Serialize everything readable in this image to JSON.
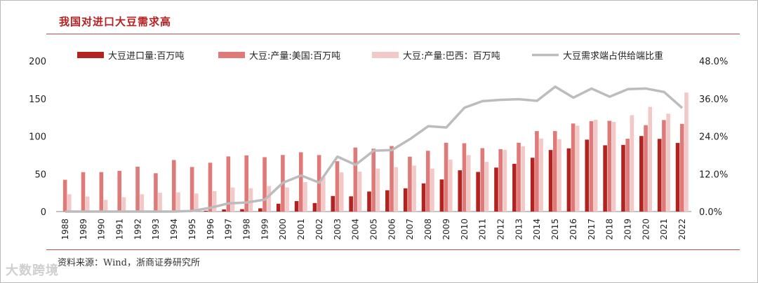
{
  "page": {
    "title": "我国对进口大豆需求高",
    "source": "资料来源：Wind，浙商证券研究所",
    "watermark": "大数跨境"
  },
  "chart_data": {
    "type": "bar",
    "title": "",
    "xlabel": "",
    "ylabel": "",
    "categories": [
      "1988",
      "1989",
      "1990",
      "1991",
      "1992",
      "1993",
      "1994",
      "1995",
      "1996",
      "1997",
      "1998",
      "1999",
      "2000",
      "2001",
      "2002",
      "2003",
      "2004",
      "2005",
      "2006",
      "2007",
      "2008",
      "2009",
      "2010",
      "2011",
      "2012",
      "2013",
      "2014",
      "2015",
      "2016",
      "2017",
      "2018",
      "2019",
      "2020",
      "2021",
      "2022"
    ],
    "ylim": [
      0,
      200
    ],
    "y_ticks": [
      "0",
      "50",
      "100",
      "150",
      "200"
    ],
    "y2lim": [
      0,
      48
    ],
    "y2_ticks": [
      "0.0%",
      "12.0%",
      "24.0%",
      "36.0%",
      "48.0%"
    ],
    "legend_position": "top",
    "grid": false,
    "series": [
      {
        "name": "大豆进口量:百万吨",
        "type": "bar",
        "color": "#b3221f",
        "values": [
          0,
          0,
          0,
          0,
          0,
          0,
          0,
          0.3,
          1.1,
          2.8,
          3.2,
          4.3,
          10.4,
          13.9,
          11.3,
          20.7,
          20.2,
          26.6,
          28.3,
          30.8,
          37.4,
          42.6,
          54.8,
          52.6,
          58.4,
          63.4,
          71.4,
          81.7,
          83.9,
          95.5,
          88.0,
          88.5,
          100.3,
          96.5,
          91.1
        ]
      },
      {
        "name": "大豆:产量:美国:百万吨",
        "type": "bar",
        "color": "#e07a79",
        "values": [
          42.2,
          52.3,
          52.4,
          54.1,
          59.6,
          50.9,
          68.4,
          59.2,
          64.8,
          73.2,
          74.6,
          72.2,
          75.1,
          78.7,
          75.0,
          66.8,
          85.0,
          83.5,
          87.0,
          72.9,
          80.7,
          91.4,
          90.7,
          84.2,
          82.8,
          91.4,
          106.9,
          106.9,
          116.9,
          120.1,
          120.5,
          96.7,
          114.7,
          121.5,
          116.4
        ]
      },
      {
        "name": "大豆:产量:巴西：百万吨",
        "type": "bar",
        "color": "#f3c9c8",
        "values": [
          23.0,
          20.0,
          15.5,
          19.0,
          23.0,
          25.0,
          25.5,
          24.0,
          27.0,
          32.0,
          31.0,
          34.0,
          32.0,
          39.0,
          46.0,
          52.0,
          53.0,
          57.0,
          59.0,
          61.0,
          57.0,
          69.0,
          75.0,
          66.0,
          82.0,
          86.5,
          97.0,
          96.0,
          114.0,
          122.0,
          119.0,
          128.0,
          139.0,
          130.0,
          158.0
        ]
      },
      {
        "name": "大豆需求端占供给端比重",
        "type": "line",
        "axis": "right",
        "color": "#bcbcbc",
        "values": [
          0.0,
          0.0,
          0.0,
          0.0,
          0.0,
          0.0,
          0.0,
          0.2,
          1.2,
          2.6,
          2.9,
          3.8,
          9.2,
          11.5,
          9.2,
          17.5,
          14.9,
          19.4,
          19.6,
          23.1,
          27.2,
          26.8,
          33.1,
          35.2,
          35.6,
          35.8,
          35.3,
          39.8,
          36.3,
          39.2,
          36.6,
          39.0,
          39.2,
          38.1,
          33.0
        ]
      }
    ]
  }
}
